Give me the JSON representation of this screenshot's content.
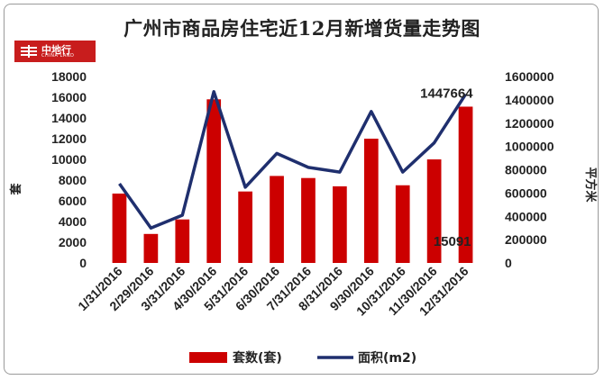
{
  "logo": {
    "name": "中地行",
    "sub": "CHINA LAND"
  },
  "chart_data": {
    "type": "bar",
    "title": "广州市商品房住宅近12月新增货量走势图",
    "categories": [
      "1/31/2016",
      "2/29/2016",
      "3/31/2016",
      "4/30/2016",
      "5/31/2016",
      "6/30/2016",
      "7/31/2016",
      "8/31/2016",
      "9/30/2016",
      "10/31/2016",
      "11/30/2016",
      "12/31/2016"
    ],
    "series": [
      {
        "name": "套数(套)",
        "type": "bar",
        "axis": "left",
        "color": "#cc0000",
        "values": [
          6700,
          2800,
          4200,
          15800,
          6900,
          8400,
          8200,
          7400,
          12000,
          7500,
          10000,
          15091
        ]
      },
      {
        "name": "面积(m2)",
        "type": "line",
        "axis": "right",
        "color": "#1f2f6e",
        "values": [
          680000,
          300000,
          410000,
          1470000,
          650000,
          940000,
          820000,
          780000,
          1300000,
          780000,
          1030000,
          1447664
        ]
      }
    ],
    "ylabel_left": "套",
    "ylabel_right": "平方米",
    "ylim_left": [
      0,
      18000
    ],
    "ylim_right": [
      0,
      1600000
    ],
    "yticks_left": [
      "0",
      "2000",
      "4000",
      "6000",
      "8000",
      "10000",
      "12000",
      "14000",
      "16000",
      "18000"
    ],
    "yticks_right": [
      "0",
      "200000",
      "400000",
      "600000",
      "800000",
      "1000000",
      "1200000",
      "1400000",
      "1600000"
    ],
    "data_labels": [
      "1447664",
      "15091"
    ],
    "legend_position": "bottom",
    "grid": false
  }
}
